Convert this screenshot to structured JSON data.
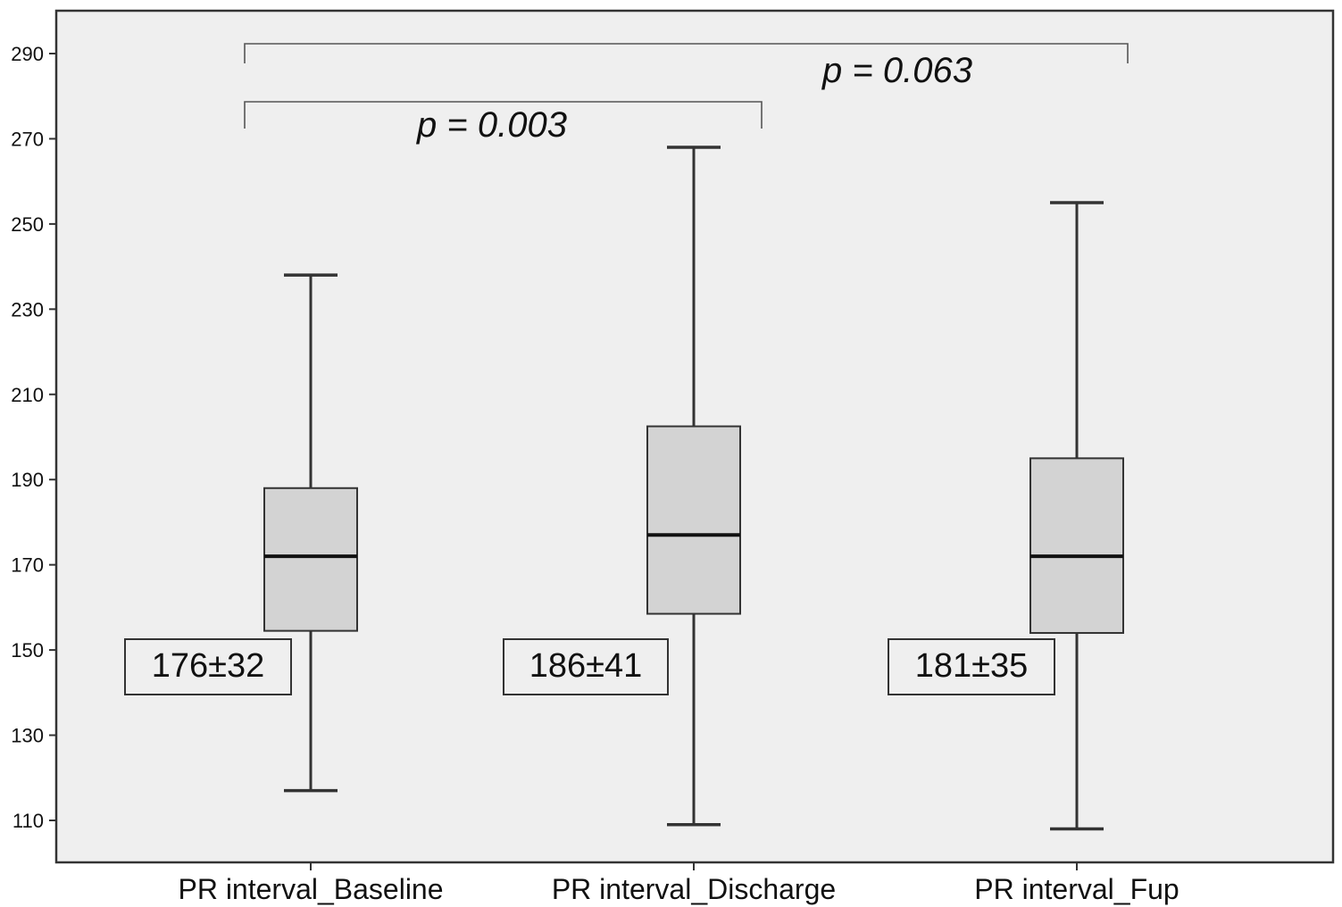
{
  "chart_data": {
    "type": "box",
    "title": "",
    "xlabel": "",
    "ylabel": "",
    "ylim": [
      100,
      300
    ],
    "yticks": [
      110,
      130,
      150,
      170,
      190,
      210,
      230,
      250,
      270,
      290
    ],
    "grid": false,
    "colors": {
      "plot_bg": "#efefef",
      "box_fill": "#d3d3d3",
      "stroke": "#333333"
    },
    "categories": [
      "PR interval_Baseline",
      "PR interval_Discharge",
      "PR interval_Fup"
    ],
    "boxes": [
      {
        "min": 117,
        "q1": 154.5,
        "median": 172,
        "q3": 188,
        "max": 238,
        "summary": "176±32"
      },
      {
        "min": 109,
        "q1": 158.5,
        "median": 177,
        "q3": 202.5,
        "max": 268,
        "summary": "186±41"
      },
      {
        "min": 108,
        "q1": 154,
        "median": 172,
        "q3": 195,
        "max": 255,
        "summary": "181±35"
      }
    ],
    "comparisons": [
      {
        "from": 0,
        "to": 1,
        "label": "p = 0.003"
      },
      {
        "from": 0,
        "to": 2,
        "label": "p = 0.063"
      }
    ]
  }
}
